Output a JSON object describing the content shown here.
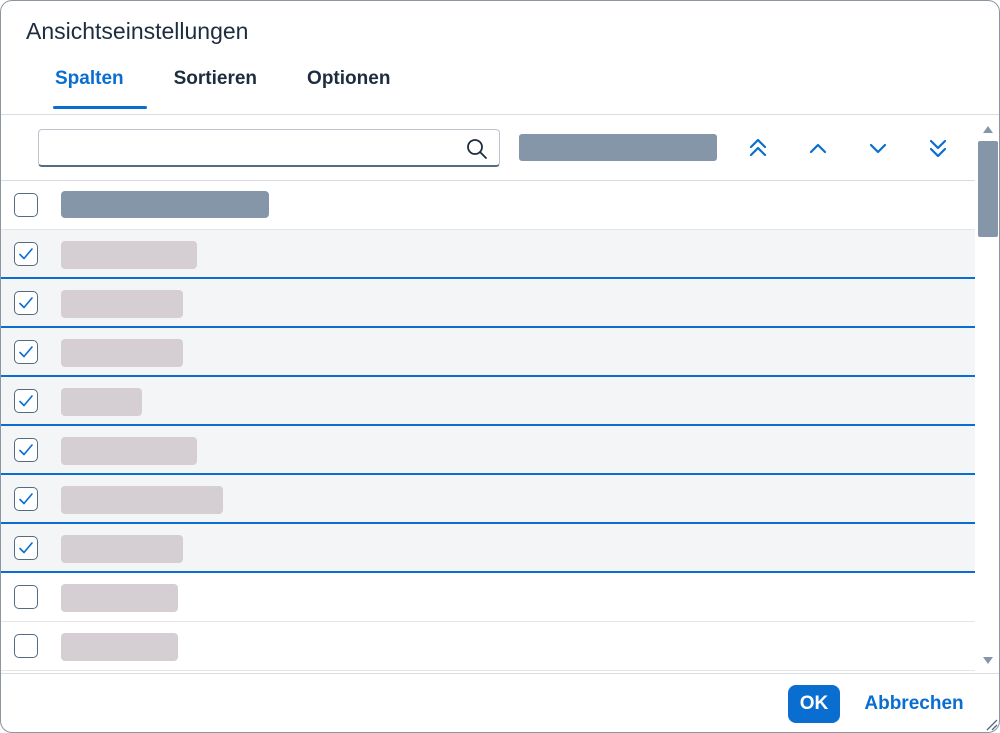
{
  "dialog": {
    "title": "Ansichtseinstellungen",
    "accent_color": "#0a6ed1"
  },
  "tabs": [
    {
      "label": "Spalten",
      "active": true
    },
    {
      "label": "Sortieren",
      "active": false
    },
    {
      "label": "Optionen",
      "active": false
    }
  ],
  "toolbar": {
    "search_value": "",
    "search_placeholder": "",
    "icons": [
      "search-icon",
      "move-to-top-icon",
      "move-up-icon",
      "move-down-icon",
      "move-to-bottom-icon"
    ]
  },
  "list": {
    "select_all_checked": false,
    "rows": [
      {
        "checked": true
      },
      {
        "checked": true
      },
      {
        "checked": true
      },
      {
        "checked": true
      },
      {
        "checked": true
      },
      {
        "checked": true
      },
      {
        "checked": true
      },
      {
        "checked": false
      },
      {
        "checked": false
      }
    ]
  },
  "footer": {
    "ok_label": "OK",
    "cancel_label": "Abbrechen"
  }
}
